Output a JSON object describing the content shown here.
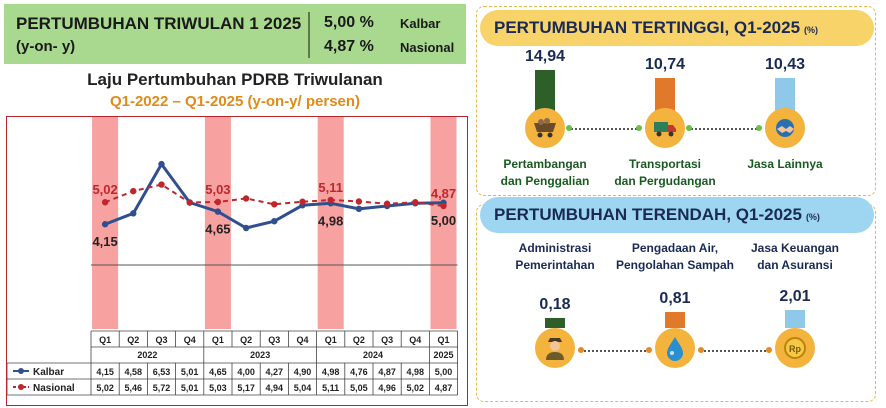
{
  "header": {
    "title": "PERTUMBUHAN TRIWULAN 1 2025",
    "subtitle": "(y-on- y)",
    "value1": "5,00 %",
    "label1": "Kalbar",
    "value2": "4,87 %",
    "label2": "Nasional"
  },
  "chart_data": {
    "type": "line",
    "title": "Laju Pertumbuhan PDRB Triwulanan",
    "subtitle": "Q1-2022 – Q1-2025 (y-on-y/ persen)",
    "quarters": [
      "Q1",
      "Q2",
      "Q3",
      "Q4",
      "Q1",
      "Q2",
      "Q3",
      "Q4",
      "Q1",
      "Q2",
      "Q3",
      "Q4",
      "Q1"
    ],
    "years": [
      {
        "label": "2022",
        "span": 4
      },
      {
        "label": "2023",
        "span": 4
      },
      {
        "label": "2024",
        "span": 4
      },
      {
        "label": "2025",
        "span": 1
      }
    ],
    "series": [
      {
        "name": "Kalbar",
        "color": "#2f4f8f",
        "style": "solid",
        "values": [
          4.15,
          4.58,
          6.53,
          5.01,
          4.65,
          4.0,
          4.27,
          4.9,
          4.98,
          4.76,
          4.87,
          4.98,
          5.0
        ],
        "display": [
          "4,15",
          "4,58",
          "6,53",
          "5,01",
          "4,65",
          "4,00",
          "4,27",
          "4,90",
          "4,98",
          "4,76",
          "4,87",
          "4,98",
          "5,00"
        ]
      },
      {
        "name": "Nasional",
        "color": "#c0272d",
        "style": "dashed",
        "values": [
          5.02,
          5.46,
          5.72,
          5.01,
          5.03,
          5.17,
          4.94,
          5.04,
          5.11,
          5.05,
          4.96,
          5.02,
          4.87
        ],
        "display": [
          "5,02",
          "5,46",
          "5,72",
          "5,01",
          "5,03",
          "5,17",
          "4,94",
          "5,04",
          "5,11",
          "5,05",
          "4,96",
          "5,02",
          "4,87"
        ]
      }
    ],
    "highlight_columns": [
      0,
      4,
      8,
      12
    ],
    "callouts": [
      {
        "index": 0,
        "nasional": "5,02",
        "kalbar": "4,15"
      },
      {
        "index": 4,
        "nasional": "5,03",
        "kalbar": "4,65"
      },
      {
        "index": 8,
        "nasional": "5,11",
        "kalbar": "4,98"
      },
      {
        "index": 12,
        "nasional": "4,87",
        "kalbar": "5,00"
      }
    ],
    "highlight_color": "#f7a1a1",
    "ylim": [
      0,
      8
    ]
  },
  "top_panel": {
    "title": "PERTUMBUHAN TERTINGGI, Q1-2025",
    "unit": "(%)",
    "items": [
      {
        "value": "14,94",
        "label1": "Pertambangan",
        "label2": "dan Penggalian",
        "bar_color": "#2f5f28",
        "icon": "mining-cart-icon"
      },
      {
        "value": "10,74",
        "label1": "Transportasi",
        "label2": "dan Pergudangan",
        "bar_color": "#e07a2a",
        "icon": "truck-icon"
      },
      {
        "value": "10,43",
        "label1": "Jasa Lainnya",
        "label2": "",
        "bar_color": "#8ec9ea",
        "icon": "handshake-icon"
      }
    ]
  },
  "bottom_panel": {
    "title": "PERTUMBUHAN TERENDAH, Q1-2025",
    "unit": "(%)",
    "items": [
      {
        "value": "0,18",
        "label1": "Administrasi",
        "label2": "Pemerintahan",
        "bar_color": "#2f5f28",
        "icon": "officer-icon"
      },
      {
        "value": "0,81",
        "label1": "Pengadaan Air,",
        "label2": "Pengolahan Sampah",
        "bar_color": "#e07a2a",
        "icon": "water-drop-icon"
      },
      {
        "value": "2,01",
        "label1": "Jasa Keuangan",
        "label2": "dan Asuransi",
        "bar_color": "#8ec9ea",
        "icon": "rupiah-coin-icon"
      }
    ]
  }
}
